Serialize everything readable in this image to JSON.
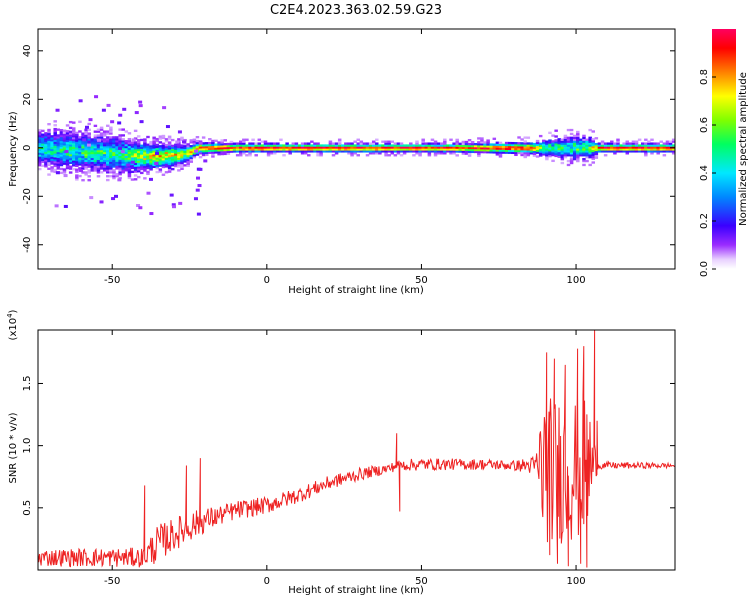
{
  "title": "C2E4.2023.363.02.59.G23",
  "colors": {
    "snr_line": "#ee2222",
    "axes": "#000000",
    "background": "#ffffff"
  },
  "colorbar": {
    "label": "Normalized spectral amplitude",
    "ticks": [
      "0.0",
      "0.2",
      "0.4",
      "0.6",
      "0.8"
    ],
    "range": [
      0,
      1
    ],
    "colormap": "rainbow (white-violet-blue-cyan-green-yellow-orange-red)"
  },
  "chart_data": [
    {
      "type": "heatmap",
      "xlabel": "Height of straight line (km)",
      "ylabel": "Frequency (Hz)",
      "xlim": [
        -74,
        132
      ],
      "ylim": [
        -50,
        49
      ],
      "xticks": [
        "-50",
        "0",
        "50",
        "100"
      ],
      "yticks": [
        "40",
        "20",
        "0",
        "-20",
        "-40"
      ],
      "grid": false,
      "centerline_hz": [
        [
          -74,
          0.0
        ],
        [
          -60,
          -1.5
        ],
        [
          -50,
          -2.5
        ],
        [
          -40,
          -3.5
        ],
        [
          -30,
          -3.2
        ],
        [
          -25,
          -2.0
        ],
        [
          -22,
          0.0
        ],
        [
          0,
          0.0
        ],
        [
          88,
          0.0
        ],
        [
          100,
          0.0
        ],
        [
          106,
          0.0
        ],
        [
          132,
          0.0
        ]
      ],
      "band_halfwidth_hz": [
        [
          -74,
          6
        ],
        [
          -60,
          7
        ],
        [
          -45,
          6
        ],
        [
          -30,
          4
        ],
        [
          -22,
          2
        ],
        [
          -10,
          1.5
        ],
        [
          20,
          1.5
        ],
        [
          60,
          1.5
        ],
        [
          86,
          2
        ],
        [
          95,
          4
        ],
        [
          105,
          4
        ],
        [
          107,
          1.5
        ],
        [
          132,
          1.5
        ]
      ],
      "peak_amplitude": [
        [
          -74,
          0.45
        ],
        [
          -50,
          0.5
        ],
        [
          -35,
          0.7
        ],
        [
          -25,
          0.75
        ],
        [
          -20,
          0.9
        ],
        [
          0,
          0.95
        ],
        [
          85,
          0.9
        ],
        [
          90,
          0.5
        ],
        [
          105,
          0.55
        ],
        [
          108,
          0.95
        ],
        [
          132,
          0.95
        ]
      ]
    },
    {
      "type": "line",
      "xlabel": "Height of straight line (km)",
      "ylabel": "SNR (10 * v/v)",
      "y_scale_label": "(x10^4)",
      "xlim": [
        -74,
        132
      ],
      "ylim": [
        0.0,
        1.93
      ],
      "xticks": [
        "-50",
        "0",
        "50",
        "100"
      ],
      "yticks": [
        "0.5",
        "1.0",
        "1.5"
      ],
      "grid": false,
      "series": [
        {
          "trend": [
            [
              -74,
              0.1
            ],
            [
              -40,
              0.1
            ],
            [
              -35,
              0.22
            ],
            [
              -25,
              0.35
            ],
            [
              -20,
              0.4
            ],
            [
              -10,
              0.48
            ],
            [
              0,
              0.52
            ],
            [
              10,
              0.6
            ],
            [
              20,
              0.7
            ],
            [
              30,
              0.77
            ],
            [
              40,
              0.82
            ],
            [
              42,
              0.84
            ],
            [
              50,
              0.85
            ],
            [
              60,
              0.85
            ],
            [
              70,
              0.85
            ],
            [
              80,
              0.84
            ],
            [
              88,
              0.84
            ],
            [
              92,
              0.8
            ],
            [
              100,
              0.82
            ],
            [
              105,
              0.84
            ],
            [
              108,
              0.84
            ],
            [
              120,
              0.84
            ],
            [
              132,
              0.84
            ]
          ],
          "noise_amplitude": [
            [
              -74,
              0.07
            ],
            [
              -40,
              0.08
            ],
            [
              -36,
              0.15
            ],
            [
              -25,
              0.12
            ],
            [
              -15,
              0.08
            ],
            [
              0,
              0.07
            ],
            [
              30,
              0.05
            ],
            [
              40,
              0.04
            ],
            [
              48,
              0.05
            ],
            [
              80,
              0.04
            ],
            [
              87,
              0.08
            ],
            [
              89,
              0.6
            ],
            [
              104,
              0.6
            ],
            [
              107,
              0.03
            ],
            [
              132,
              0.02
            ]
          ],
          "spikes": [
            [
              -39.5,
              0.68
            ],
            [
              -26,
              0.84
            ],
            [
              -21.5,
              0.9
            ],
            [
              42,
              1.1
            ],
            [
              43,
              0.47
            ],
            [
              90.5,
              1.75
            ],
            [
              91.5,
              0.12
            ],
            [
              93,
              1.7
            ],
            [
              94,
              0.05
            ],
            [
              96.5,
              1.65
            ],
            [
              97.5,
              0.03
            ],
            [
              100.5,
              1.78
            ],
            [
              101.5,
              0.05
            ],
            [
              102.5,
              1.8
            ],
            [
              103.5,
              0.02
            ],
            [
              106,
              1.93
            ],
            [
              106.8,
              1.2
            ]
          ]
        }
      ]
    }
  ]
}
